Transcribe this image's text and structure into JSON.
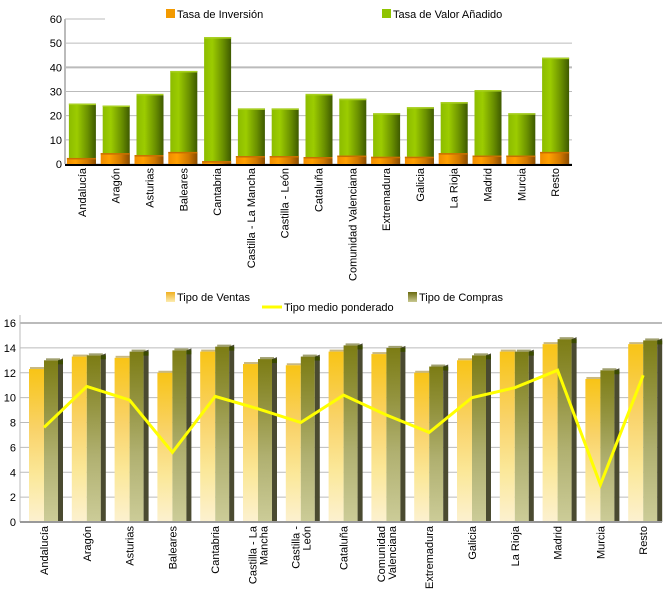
{
  "chart_data": [
    {
      "type": "bar",
      "categories": [
        "Andalucía",
        "Aragón",
        "Asturias",
        "Baleares",
        "Cantabria",
        "Castilla - La Mancha",
        "Castilla - León",
        "Cataluña",
        "Comunidad Valenciana",
        "Extremadura",
        "Galicia",
        "La Rioja",
        "Madrid",
        "Murcia",
        "Resto"
      ],
      "series": [
        {
          "name": "Tasa de Inversión",
          "color": "#f39a00",
          "values": [
            2.5,
            4.5,
            3.7,
            5.0,
            1.2,
            3.3,
            3.3,
            2.9,
            3.5,
            3.0,
            3.0,
            4.5,
            3.5,
            3.5,
            5.0
          ]
        },
        {
          "name": "Tasa de Valor Añadido",
          "color": "#8fc400",
          "values": [
            25,
            24.2,
            29,
            38.5,
            52.5,
            23,
            23,
            29,
            27,
            21,
            23.5,
            25.6,
            30.6,
            21,
            44
          ]
        }
      ],
      "ylim": [
        0,
        60
      ],
      "yticks": [
        0,
        10,
        20,
        30,
        40,
        50,
        60
      ],
      "grid": true,
      "legend": "top"
    },
    {
      "type": "bar",
      "categories": [
        "Andalucía",
        "Aragón",
        "Asturias",
        "Baleares",
        "Cantabria",
        "Castilla - La Mancha",
        "Castilla - León",
        "Cataluña",
        "Comunidad Valenciana",
        "Extremadura",
        "Galicia",
        "La Rioja",
        "Madrid",
        "Murcia",
        "Resto"
      ],
      "series": [
        {
          "name": "Tipo de Ventas",
          "type": "bar",
          "color": "#f8c820",
          "values": [
            12.3,
            13.3,
            13.2,
            12.0,
            13.7,
            12.7,
            12.6,
            13.7,
            13.5,
            12.0,
            13.0,
            13.7,
            14.3,
            11.5,
            14.3
          ]
        },
        {
          "name": "Tipo de Compras",
          "type": "bar",
          "color": "#808018",
          "values": [
            13.0,
            13.4,
            13.7,
            13.8,
            14.1,
            13.1,
            13.3,
            14.2,
            14.0,
            12.5,
            13.4,
            13.7,
            14.7,
            12.2,
            14.6
          ]
        },
        {
          "name": "Tipo medio ponderado",
          "type": "line",
          "color": "#ffff00",
          "values": [
            7.6,
            10.9,
            9.8,
            5.6,
            10.1,
            9.1,
            8.0,
            10.2,
            8.6,
            7.2,
            10.0,
            10.8,
            12.2,
            3.0,
            11.8
          ]
        }
      ],
      "ylim": [
        0,
        16
      ],
      "yticks": [
        0,
        2,
        4,
        6,
        8,
        10,
        12,
        14,
        16
      ],
      "grid": true,
      "legend": "top"
    }
  ]
}
